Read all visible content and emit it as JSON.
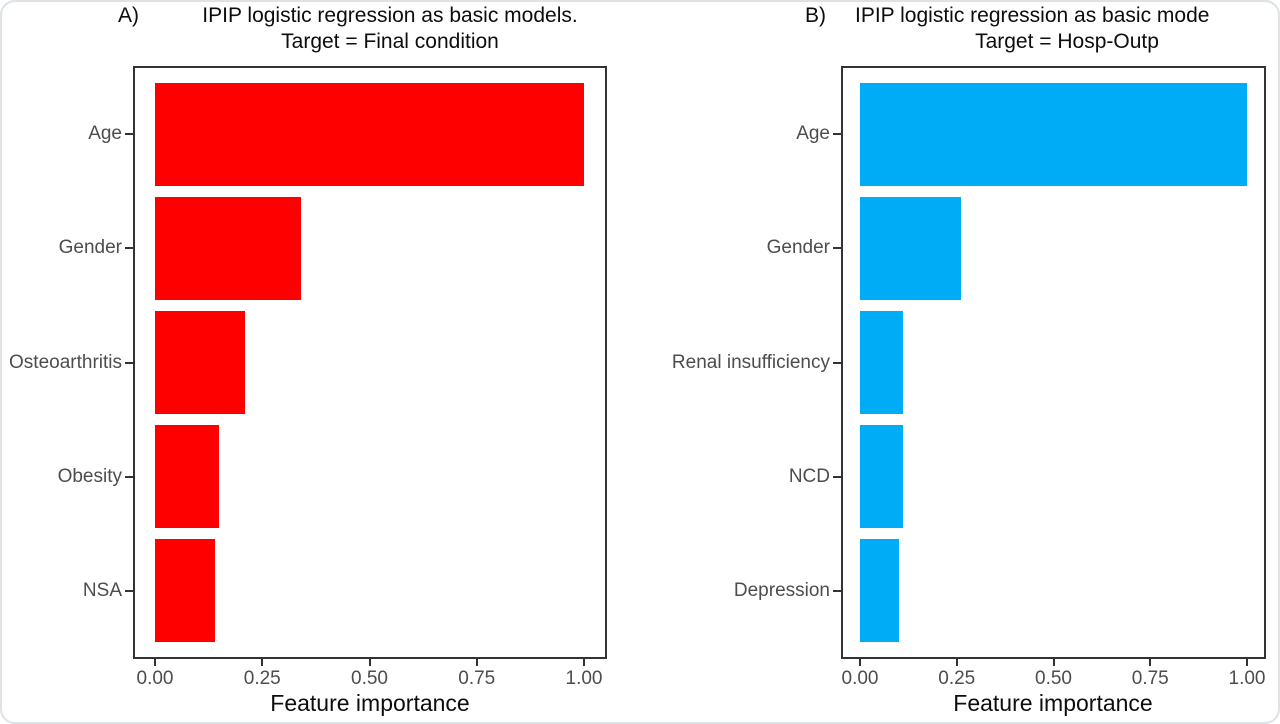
{
  "figure": {
    "x_axis_label": "Feature importance"
  },
  "chart_data": [
    {
      "type": "bar",
      "orientation": "horizontal",
      "panel_label": "A)",
      "title": "IPIP logistic regression as basic models.",
      "subtitle": "Target = Final condition",
      "categories": [
        "Age",
        "Gender",
        "Osteoarthritis",
        "Obesity",
        "NSA"
      ],
      "values": [
        1.0,
        0.34,
        0.21,
        0.15,
        0.14
      ],
      "xlabel": "Feature importance",
      "ylabel": "",
      "xlim": [
        0,
        1
      ],
      "x_ticks": [
        0.0,
        0.25,
        0.5,
        0.75,
        1.0
      ],
      "x_tick_labels": [
        "0.00",
        "0.25",
        "0.50",
        "0.75",
        "1.00"
      ],
      "bar_color": "#FF0000",
      "grid": false,
      "legend": "none"
    },
    {
      "type": "bar",
      "orientation": "horizontal",
      "panel_label": "B)",
      "title": "IPIP logistic regression as basic mode",
      "subtitle": "Target = Hosp-Outp",
      "categories": [
        "Age",
        "Gender",
        "Renal insufficiency",
        "NCD",
        "Depression"
      ],
      "values": [
        1.0,
        0.26,
        0.11,
        0.11,
        0.1
      ],
      "xlabel": "Feature importance",
      "ylabel": "",
      "xlim": [
        0,
        1
      ],
      "x_ticks": [
        0.0,
        0.25,
        0.5,
        0.75,
        1.0
      ],
      "x_tick_labels": [
        "0.00",
        "0.25",
        "0.50",
        "0.75",
        "1.00"
      ],
      "bar_color": "#00ACF6",
      "grid": false,
      "legend": "none"
    }
  ]
}
